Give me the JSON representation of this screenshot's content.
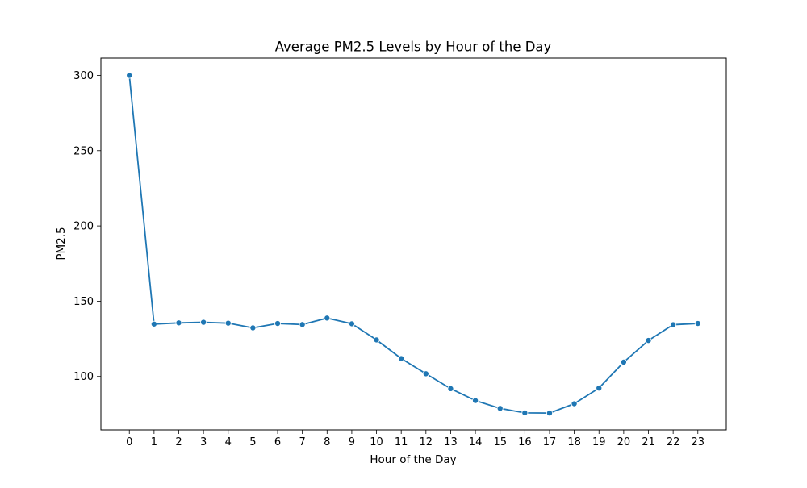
{
  "chart_data": {
    "type": "line",
    "title": "Average PM2.5 Levels by Hour of the Day",
    "xlabel": "Hour of the Day",
    "ylabel": "PM2.5",
    "x": [
      0,
      1,
      2,
      3,
      4,
      5,
      6,
      7,
      8,
      9,
      10,
      11,
      12,
      13,
      14,
      15,
      16,
      17,
      18,
      19,
      20,
      21,
      22,
      23
    ],
    "x_tick_labels": [
      "0",
      "1",
      "2",
      "3",
      "4",
      "5",
      "6",
      "7",
      "8",
      "9",
      "10",
      "11",
      "12",
      "13",
      "14",
      "15",
      "16",
      "17",
      "18",
      "19",
      "20",
      "21",
      "22",
      "23"
    ],
    "series": [
      {
        "values": [
          300,
          134.8,
          135.6,
          136.0,
          135.4,
          132.3,
          135.2,
          134.5,
          138.8,
          135.0,
          124.3,
          111.9,
          101.8,
          91.9,
          84.0,
          78.8,
          75.8,
          75.7,
          81.9,
          92.3,
          109.5,
          123.9,
          134.4,
          135.2
        ],
        "color": "#1f77b4",
        "marker": "circle"
      }
    ],
    "y_ticks": [
      100,
      150,
      200,
      250,
      300
    ],
    "xlim": [
      -1.15,
      24.15
    ],
    "ylim": [
      64.5,
      311.5
    ],
    "grid": false,
    "legend": false
  }
}
